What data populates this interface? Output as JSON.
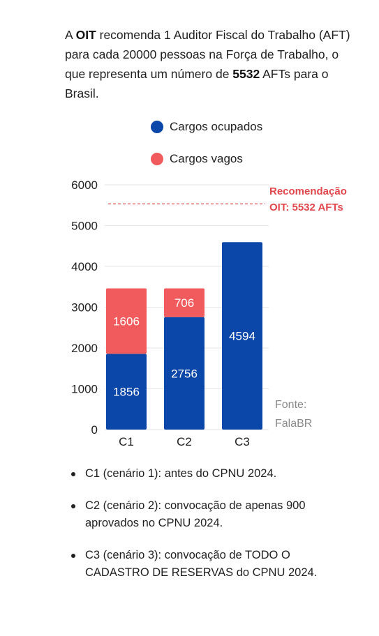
{
  "intro": {
    "p1": "A ",
    "org": "OIT",
    "p2": " recomenda 1 Auditor Fiscal do Trabalho (AFT) para cada 20000 pessoas na Força de Trabalho, o que representa um número de ",
    "num": "5532",
    "p3": " AFTs para o Brasil."
  },
  "colors": {
    "ocupados": "#0b47a8",
    "vagos": "#f15b5d",
    "recommendation": "#e2474c",
    "grid": "#e6e6e6"
  },
  "chart_data": {
    "type": "bar",
    "stacked": true,
    "categories": [
      "C1",
      "C2",
      "C3"
    ],
    "series": [
      {
        "name": "Cargos ocupados",
        "values": [
          1856,
          2756,
          4594
        ]
      },
      {
        "name": "Cargos vagos",
        "values": [
          1606,
          706,
          0
        ]
      }
    ],
    "ylim": [
      0,
      6000
    ],
    "yticks": [
      "0",
      "1000",
      "2000",
      "3000",
      "4000",
      "5000",
      "6000"
    ],
    "grid": true,
    "legend_position": "top",
    "reference_line": {
      "value": 5532,
      "label_line1": "Recomendação",
      "label_line2": "OIT: 5532 AFTs"
    }
  },
  "source": {
    "line1": "Fonte:",
    "line2": "FalaBR"
  },
  "notes": [
    "C1 (cenário 1): antes do CPNU 2024.",
    "C2 (cenário 2): convocação de apenas 900 aprovados no CPNU 2024.",
    "C3 (cenário 3): convocação de TODO O CADASTRO DE RESERVAS do CPNU 2024."
  ]
}
